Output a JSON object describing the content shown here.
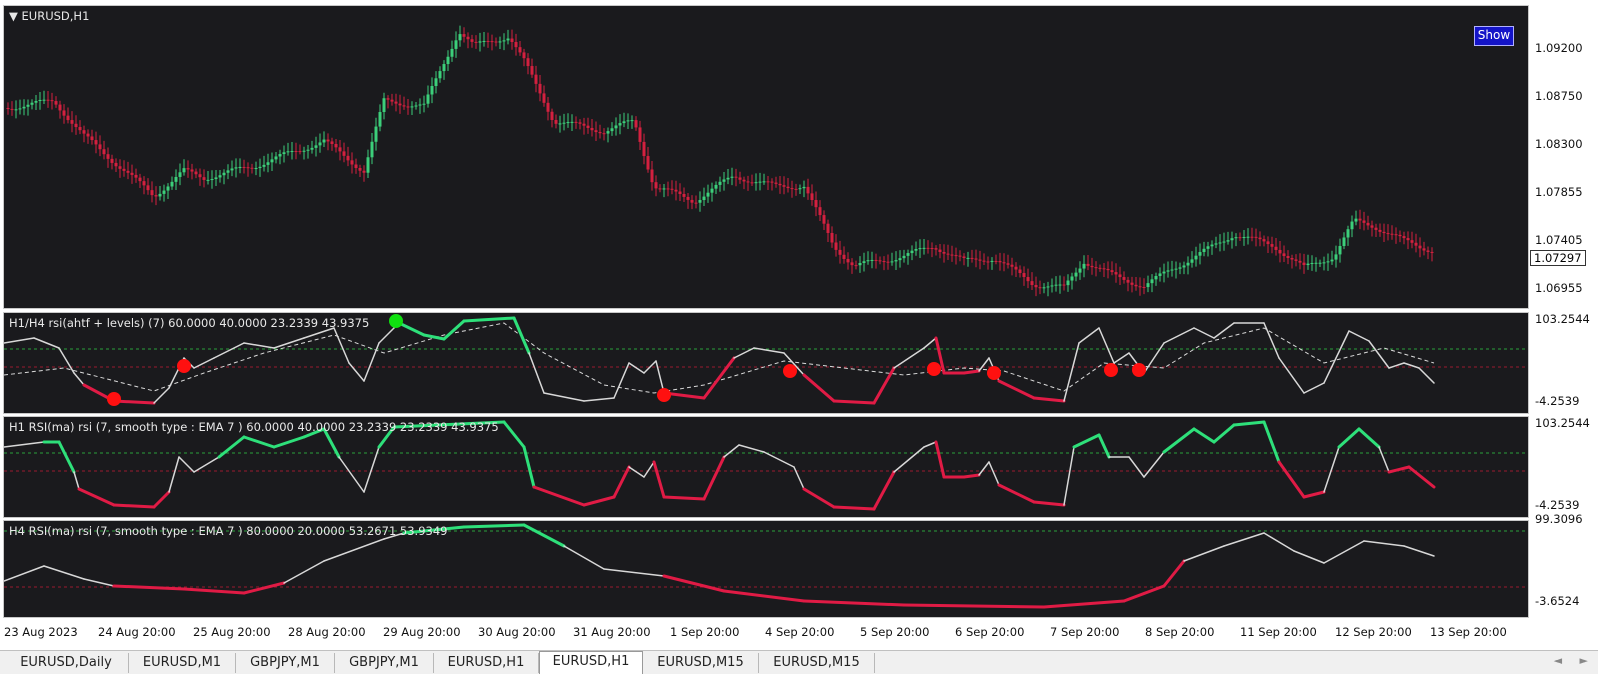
{
  "main_chart": {
    "title": "EURUSD,H1",
    "show_button": "Show",
    "price_labels": [
      "1.09200",
      "1.08750",
      "1.08300",
      "1.07855",
      "1.07405",
      "1.06955"
    ],
    "current_price": "1.07297",
    "colors": {
      "bull": "#3ccf7a",
      "bear": "#d4203f",
      "background": "#1a1a1d"
    }
  },
  "indicators": [
    {
      "title": "H1/H4 rsi(ahtf + levels) (7) 60.0000 40.0000 23.2339 43.9375",
      "max_label": "103.2544",
      "min_label": "-4.2539"
    },
    {
      "title": "H1 RSI(ma) rsi (7, smooth type : EMA  7 ) 60.0000 40.0000 23.2339 23.2339 43.9375",
      "max_label": "103.2544",
      "min_label": "-4.2539"
    },
    {
      "title": "H4 RSI(ma) rsi (7, smooth type : EMA  7 ) 80.0000 20.0000 53.2671 53.9349",
      "max_label": "99.3096",
      "min_label": "-3.6524"
    }
  ],
  "time_labels": [
    "23 Aug 2023",
    "24 Aug 20:00",
    "25 Aug 20:00",
    "28 Aug 20:00",
    "29 Aug 20:00",
    "30 Aug 20:00",
    "31 Aug 20:00",
    "1 Sep 20:00",
    "4 Sep 20:00",
    "5 Sep 20:00",
    "6 Sep 20:00",
    "7 Sep 20:00",
    "8 Sep 20:00",
    "11 Sep 20:00",
    "12 Sep 20:00",
    "13 Sep 20:00"
  ],
  "tabs": [
    {
      "label": "EURUSD,Daily",
      "active": false
    },
    {
      "label": "EURUSD,M1",
      "active": false
    },
    {
      "label": "GBPJPY,M1",
      "active": false
    },
    {
      "label": "GBPJPY,M1",
      "active": false
    },
    {
      "label": "EURUSD,H1",
      "active": false
    },
    {
      "label": "EURUSD,H1",
      "active": true
    },
    {
      "label": "EURUSD,M15",
      "active": false
    },
    {
      "label": "EURUSD,M15",
      "active": false
    }
  ],
  "tab_nav": {
    "prev_icon": "◄",
    "next_icon": "►"
  }
}
